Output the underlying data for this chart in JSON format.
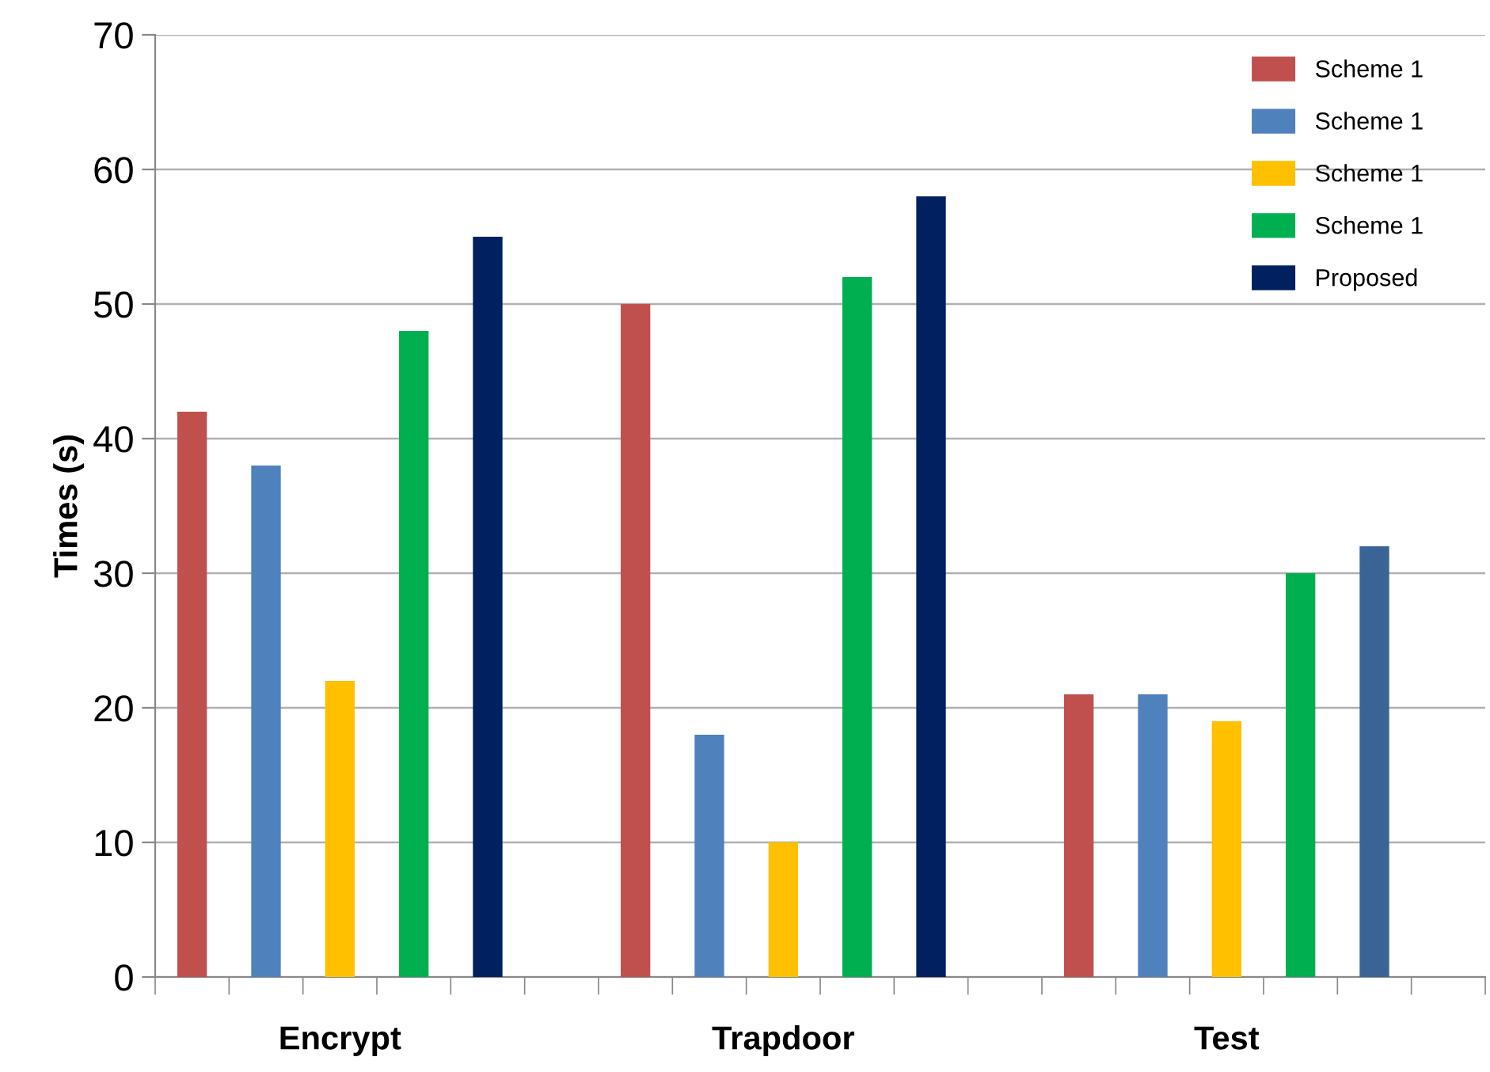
{
  "chart_data": {
    "type": "bar",
    "ylabel": "Times (s)",
    "categories": [
      "Encrypt",
      "Trapdoor",
      "Test"
    ],
    "series": [
      {
        "name": "Scheme 1",
        "color": "#c0504d",
        "values": [
          42,
          50,
          21
        ]
      },
      {
        "name": "Scheme 1",
        "color": "#4f81bd",
        "values": [
          38,
          18,
          21
        ]
      },
      {
        "name": "Scheme 1",
        "color": "#ffc000",
        "values": [
          22,
          10,
          19
        ]
      },
      {
        "name": "Scheme 1",
        "color": "#00b050",
        "values": [
          48,
          52,
          30
        ]
      },
      {
        "name": "Proposed",
        "color": "#002060",
        "colors": [
          "#002060",
          "#002060",
          "#3a6496"
        ],
        "values": [
          55,
          58,
          32
        ]
      }
    ],
    "ylim": [
      0,
      70
    ],
    "yticks": [
      0,
      10,
      20,
      30,
      40,
      50,
      60,
      70
    ],
    "grid": "y",
    "legend": "top right"
  }
}
